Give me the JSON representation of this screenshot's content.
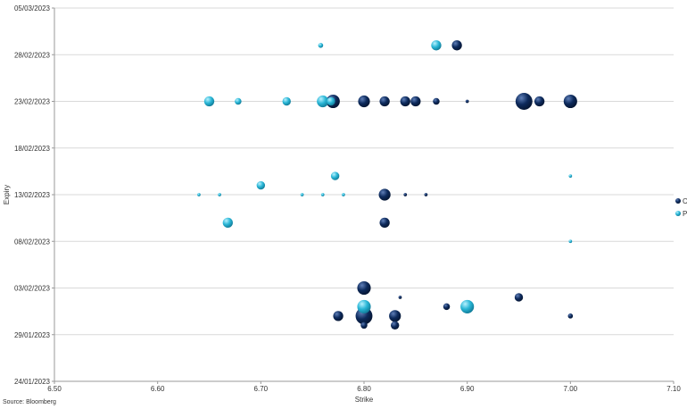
{
  "chart_data": {
    "type": "scatter",
    "title": "",
    "xlabel": "Strike",
    "ylabel": "Expiry",
    "xlim": [
      6.5,
      7.1
    ],
    "xticks": [
      "6.50",
      "6.60",
      "6.70",
      "6.80",
      "6.90",
      "7.00",
      "7.10"
    ],
    "xtick_values": [
      6.5,
      6.6,
      6.7,
      6.8,
      6.9,
      7.0,
      7.1
    ],
    "ylim": [
      "24/01/2023",
      "05/03/2023"
    ],
    "yticks": [
      "24/01/2023",
      "29/01/2023",
      "03/02/2023",
      "08/02/2023",
      "13/02/2023",
      "18/02/2023",
      "23/02/2023",
      "28/02/2023",
      "05/03/2023"
    ],
    "grid": "horizontal",
    "legend_position": "right",
    "point_style": "bubble",
    "series": [
      {
        "name": "C",
        "color": "#0d2a5c",
        "points": [
          {
            "x": 6.89,
            "y": "01/03/2023",
            "size": 5
          },
          {
            "x": 6.77,
            "y": "23/02/2023",
            "size": 7
          },
          {
            "x": 6.8,
            "y": "23/02/2023",
            "size": 6
          },
          {
            "x": 6.82,
            "y": "23/02/2023",
            "size": 5
          },
          {
            "x": 6.84,
            "y": "23/02/2023",
            "size": 5
          },
          {
            "x": 6.85,
            "y": "23/02/2023",
            "size": 5
          },
          {
            "x": 6.87,
            "y": "23/02/2023",
            "size": 3
          },
          {
            "x": 6.9,
            "y": "23/02/2023",
            "size": 1
          },
          {
            "x": 6.955,
            "y": "23/02/2023",
            "size": 9
          },
          {
            "x": 6.97,
            "y": "23/02/2023",
            "size": 5
          },
          {
            "x": 7.0,
            "y": "23/02/2023",
            "size": 7
          },
          {
            "x": 6.82,
            "y": "13/02/2023",
            "size": 6
          },
          {
            "x": 6.84,
            "y": "13/02/2023",
            "size": 1
          },
          {
            "x": 6.86,
            "y": "13/02/2023",
            "size": 1
          },
          {
            "x": 6.82,
            "y": "10/02/2023",
            "size": 5
          },
          {
            "x": 6.8,
            "y": "03/02/2023",
            "size": 7
          },
          {
            "x": 6.835,
            "y": "02/02/2023",
            "size": 1
          },
          {
            "x": 6.95,
            "y": "02/02/2023",
            "size": 4
          },
          {
            "x": 6.88,
            "y": "01/02/2023",
            "size": 3
          },
          {
            "x": 6.775,
            "y": "31/01/2023",
            "size": 5
          },
          {
            "x": 6.8,
            "y": "31/01/2023",
            "size": 9
          },
          {
            "x": 6.83,
            "y": "31/01/2023",
            "size": 6
          },
          {
            "x": 7.0,
            "y": "31/01/2023",
            "size": 2
          },
          {
            "x": 6.8,
            "y": "30/01/2023",
            "size": 3
          },
          {
            "x": 6.83,
            "y": "30/01/2023",
            "size": 4
          }
        ]
      },
      {
        "name": "P",
        "color": "#29b6d6",
        "points": [
          {
            "x": 6.758,
            "y": "01/03/2023",
            "size": 2
          },
          {
            "x": 6.87,
            "y": "01/03/2023",
            "size": 5
          },
          {
            "x": 6.65,
            "y": "23/02/2023",
            "size": 5
          },
          {
            "x": 6.678,
            "y": "23/02/2023",
            "size": 3
          },
          {
            "x": 6.725,
            "y": "23/02/2023",
            "size": 4
          },
          {
            "x": 6.76,
            "y": "23/02/2023",
            "size": 6
          },
          {
            "x": 6.768,
            "y": "23/02/2023",
            "size": 4
          },
          {
            "x": 6.772,
            "y": "15/02/2023",
            "size": 4
          },
          {
            "x": 7.0,
            "y": "15/02/2023",
            "size": 1
          },
          {
            "x": 6.7,
            "y": "14/02/2023",
            "size": 4
          },
          {
            "x": 6.64,
            "y": "13/02/2023",
            "size": 1
          },
          {
            "x": 6.66,
            "y": "13/02/2023",
            "size": 1
          },
          {
            "x": 6.74,
            "y": "13/02/2023",
            "size": 1
          },
          {
            "x": 6.76,
            "y": "13/02/2023",
            "size": 1
          },
          {
            "x": 6.78,
            "y": "13/02/2023",
            "size": 1
          },
          {
            "x": 6.668,
            "y": "10/02/2023",
            "size": 5
          },
          {
            "x": 7.0,
            "y": "08/02/2023",
            "size": 1
          },
          {
            "x": 6.8,
            "y": "01/02/2023",
            "size": 7
          },
          {
            "x": 6.9,
            "y": "01/02/2023",
            "size": 7
          }
        ]
      }
    ]
  },
  "source": "Source: Bloomberg"
}
